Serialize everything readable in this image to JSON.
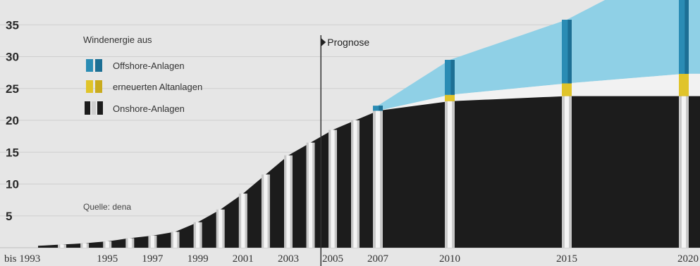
{
  "chart_data": {
    "type": "area",
    "ylim": [
      0,
      40
    ],
    "yticks": [
      5,
      10,
      15,
      20,
      25,
      30,
      35
    ],
    "x_tick_labels": [
      "bis 1993",
      "1995",
      "1997",
      "1999",
      "2001",
      "2003",
      "2005",
      "2007",
      "2010",
      "2015",
      "2020"
    ],
    "legend": {
      "title": "Windenergie aus",
      "items": [
        {
          "key": "offshore",
          "label": "Offshore-Anlagen",
          "color": "#2a8cb4"
        },
        {
          "key": "repowered",
          "label": "erneuerten Altanlagen",
          "color": "#e0c42a"
        },
        {
          "key": "onshore",
          "label": "Onshore-Anlagen",
          "color": "#1c1c1c"
        }
      ]
    },
    "forecast_label": "Prognose",
    "forecast_from": 2004.5,
    "source_note": "Quelle: dena",
    "series": [
      {
        "name": "Onshore-Anlagen",
        "x": [
          1992,
          1993,
          1994,
          1995,
          1996,
          1997,
          1998,
          1999,
          2000,
          2001,
          2002,
          2003,
          2004,
          2005,
          2006,
          2007,
          2008,
          2010,
          2015,
          2020
        ],
        "values": [
          0.3,
          0.5,
          0.7,
          1.0,
          1.5,
          1.9,
          2.5,
          4.0,
          6.0,
          8.5,
          11.5,
          14.5,
          16.5,
          18.5,
          20.0,
          21.5,
          22.0,
          23.0,
          23.8,
          23.8
        ]
      },
      {
        "name": "erneuerten Altanlagen",
        "x": [
          2007,
          2010,
          2015,
          2020
        ],
        "values": [
          0.0,
          1.0,
          2.0,
          3.5
        ]
      },
      {
        "name": "Offshore-Anlagen",
        "x": [
          2007,
          2010,
          2015,
          2020
        ],
        "values": [
          0.8,
          5.5,
          10.0,
          18.0
        ]
      }
    ],
    "marked_years": [
      1993,
      1994,
      1995,
      1996,
      1997,
      1998,
      1999,
      2000,
      2001,
      2002,
      2003,
      2004,
      2005,
      2006,
      2007,
      2010,
      2015,
      2020
    ]
  }
}
